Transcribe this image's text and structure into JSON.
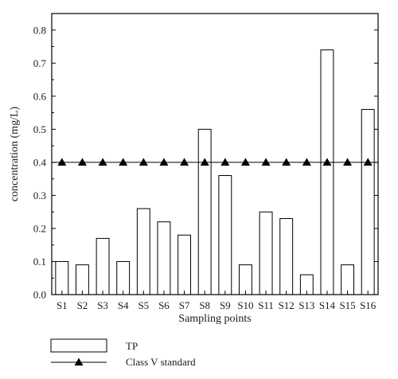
{
  "chart_data": {
    "type": "bar",
    "categories": [
      "S1",
      "S2",
      "S3",
      "S4",
      "S5",
      "S6",
      "S7",
      "S8",
      "S9",
      "S10",
      "S11",
      "S12",
      "S13",
      "S14",
      "S15",
      "S16"
    ],
    "series": [
      {
        "name": "TP",
        "type": "bar",
        "values": [
          0.1,
          0.09,
          0.17,
          0.1,
          0.26,
          0.22,
          0.18,
          0.5,
          0.36,
          0.09,
          0.25,
          0.23,
          0.06,
          0.74,
          0.09,
          0.56
        ],
        "fill": "#ffffff",
        "stroke": "#000000"
      },
      {
        "name": "Class V standard",
        "type": "line",
        "marker": "triangle",
        "values": [
          0.4,
          0.4,
          0.4,
          0.4,
          0.4,
          0.4,
          0.4,
          0.4,
          0.4,
          0.4,
          0.4,
          0.4,
          0.4,
          0.4,
          0.4,
          0.4
        ],
        "stroke": "#000000"
      }
    ],
    "xlabel": "Sampling points",
    "ylabel": "concentration (mg/L)",
    "ylim": [
      0.0,
      0.85
    ],
    "yticks": [
      "0.0",
      "0.1",
      "0.2",
      "0.3",
      "0.4",
      "0.5",
      "0.6",
      "0.7",
      "0.8"
    ],
    "grid": false,
    "legend_position": "bottom-left"
  }
}
